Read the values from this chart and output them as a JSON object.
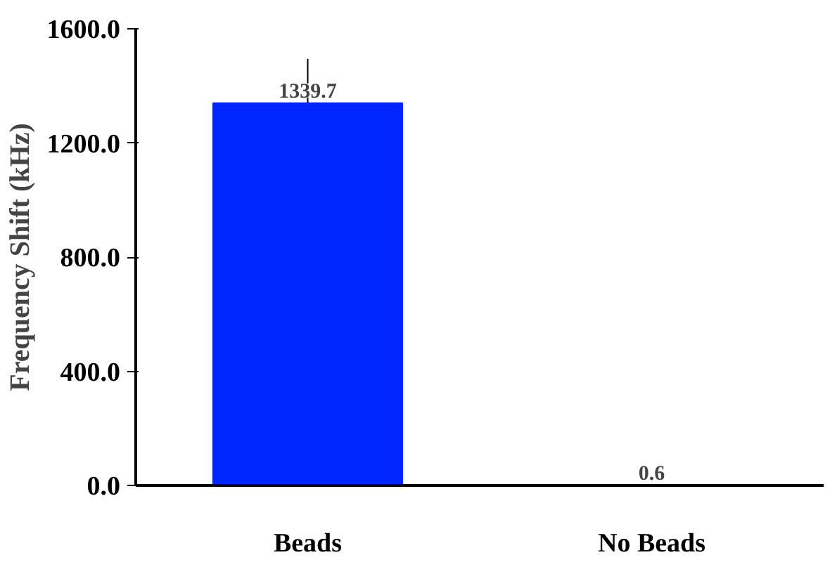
{
  "chart_data": {
    "type": "bar",
    "ylabel": "Frequency Shift (kHz)",
    "categories": [
      "Beads",
      "No Beads"
    ],
    "values": [
      1339.7,
      0.6
    ],
    "errors": [
      155,
      null
    ],
    "color": "#0026ff",
    "data_labels": true,
    "ylim": [
      0,
      1600
    ],
    "yticks": [
      {
        "value": 0,
        "label": "0.0"
      },
      {
        "value": 400,
        "label": "400.0"
      },
      {
        "value": 800,
        "label": "800.0"
      },
      {
        "value": 1200,
        "label": "1200.0"
      },
      {
        "value": 1600,
        "label": "1600.0"
      }
    ],
    "grid": false
  }
}
